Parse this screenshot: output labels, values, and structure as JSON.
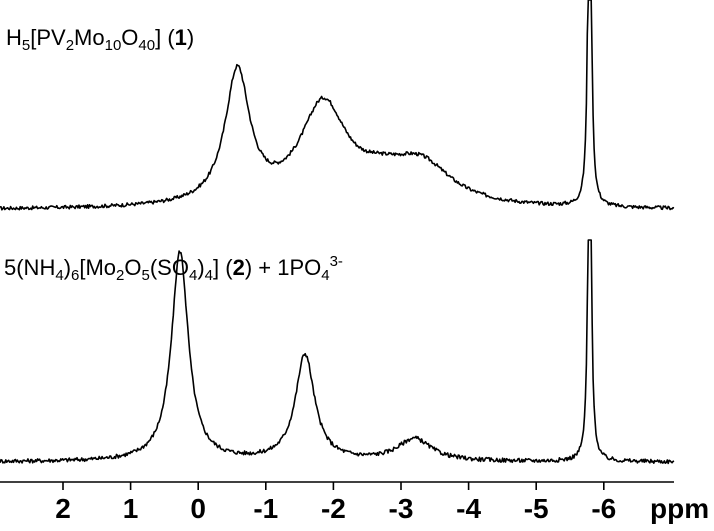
{
  "chart_data": {
    "type": "line",
    "x_unit": "ppm",
    "x_range": [
      2.7,
      -6.7
    ],
    "x_reversed": true,
    "x_ticks": [
      2,
      1,
      0,
      -1,
      -2,
      -3,
      -4,
      -5,
      -6
    ],
    "x_tick_labels": [
      "2",
      "1",
      "0",
      "-1",
      "-2",
      "-3",
      "-4",
      "-5",
      "-6"
    ],
    "ylabel": "",
    "series": [
      {
        "name": "H5[PV2Mo10O40] (1)",
        "label_parts": [
          {
            "t": "H",
            "s": "n"
          },
          {
            "t": "5",
            "s": "sub"
          },
          {
            "t": "[PV",
            "s": "n"
          },
          {
            "t": "2",
            "s": "sub"
          },
          {
            "t": "Mo",
            "s": "n"
          },
          {
            "t": "10",
            "s": "sub"
          },
          {
            "t": "O",
            "s": "n"
          },
          {
            "t": "40",
            "s": "sub"
          },
          {
            "t": "] (",
            "s": "n"
          },
          {
            "t": "1",
            "s": "b"
          },
          {
            "t": ")",
            "s": "n"
          }
        ],
        "baseline": 0.02,
        "noise": 0.012,
        "clip_level": 1.0,
        "peaks": [
          {
            "center": -0.58,
            "width": 0.22,
            "height": 0.44
          },
          {
            "center": -1.85,
            "width": 0.42,
            "height": 0.33
          },
          {
            "center": -3.3,
            "width": 0.55,
            "height": 0.13
          },
          {
            "center": -2.7,
            "width": 0.5,
            "height": 0.06
          },
          {
            "center": -5.79,
            "width": 0.025,
            "height": 1.6
          }
        ]
      },
      {
        "name": "5(NH4)6[Mo2O5(SO4)4] (2) + 1PO4 3-",
        "label_parts": [
          {
            "t": "5(NH",
            "s": "n"
          },
          {
            "t": "4",
            "s": "sub"
          },
          {
            "t": ")",
            "s": "n"
          },
          {
            "t": "6",
            "s": "sub"
          },
          {
            "t": "[Mo",
            "s": "n"
          },
          {
            "t": "2",
            "s": "sub"
          },
          {
            "t": "O",
            "s": "n"
          },
          {
            "t": "5",
            "s": "sub"
          },
          {
            "t": "(SO",
            "s": "n"
          },
          {
            "t": "4",
            "s": "sub"
          },
          {
            "t": ")",
            "s": "n"
          },
          {
            "t": "4",
            "s": "sub"
          },
          {
            "t": "] (",
            "s": "n"
          },
          {
            "t": "2",
            "s": "b"
          },
          {
            "t": ")  + 1PO",
            "s": "n"
          },
          {
            "t": "4",
            "s": "sub"
          },
          {
            "t": "3-",
            "s": "sup"
          }
        ],
        "baseline": 0.0,
        "noise": 0.015,
        "clip_level": 1.0,
        "peaks": [
          {
            "center": 0.27,
            "width": 0.15,
            "height": 0.75
          },
          {
            "center": -1.58,
            "width": 0.17,
            "height": 0.38
          },
          {
            "center": -3.2,
            "width": 0.3,
            "height": 0.08
          },
          {
            "center": -5.79,
            "width": 0.025,
            "height": 1.6
          }
        ]
      }
    ]
  }
}
